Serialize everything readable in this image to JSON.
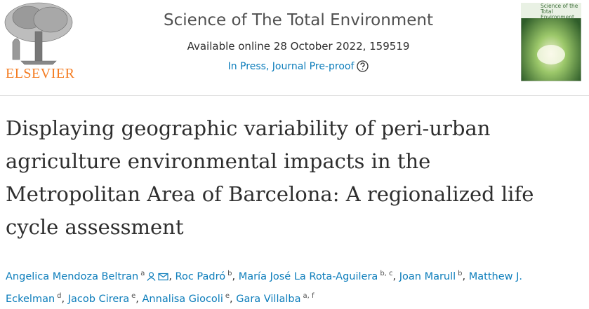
{
  "header": {
    "publisher": "ELSEVIER",
    "journal": "Science of The Total Environment",
    "availability": "Available online 28 October 2022, 159519",
    "status": "In Press, Journal Pre-proof",
    "cover_title": "Science of the Total Environment"
  },
  "article": {
    "title": "Displaying geographic variability of peri-urban agriculture environmental impacts in the Metropolitan Area of Barcelona: A regionalized life cycle assessment",
    "authors": [
      {
        "name": "Angelica Mendoza Beltran",
        "affiliations": "a"
      },
      {
        "name": "Roc Padró",
        "affiliations": "b"
      },
      {
        "name": "María José La Rota-Aguilera",
        "affiliations": "b, c"
      },
      {
        "name": "Joan Marull",
        "affiliations": "b"
      },
      {
        "name": "Matthew J. Eckelman",
        "affiliations": "d"
      },
      {
        "name": "Jacob Cirera",
        "affiliations": "e"
      },
      {
        "name": "Annalisa Giocoli",
        "affiliations": "e"
      },
      {
        "name": "Gara Villalba",
        "affiliations": "a, f"
      }
    ]
  }
}
